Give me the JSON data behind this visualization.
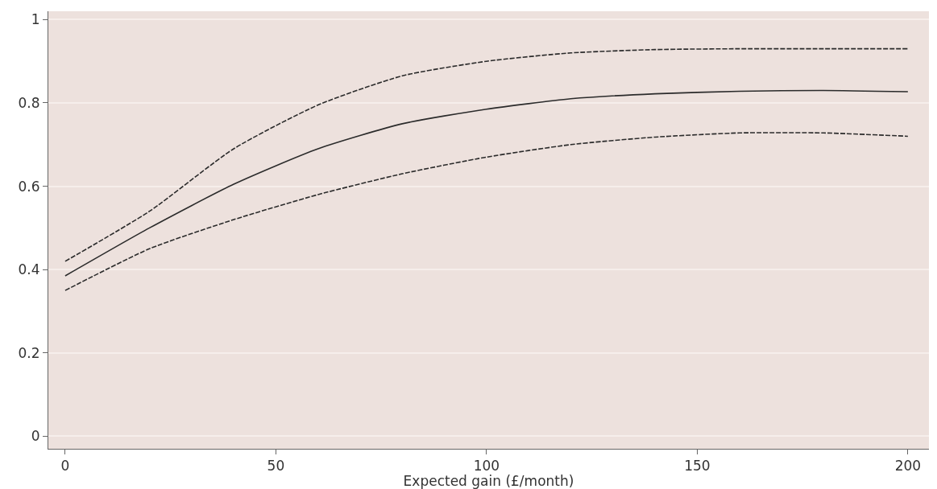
{
  "chart_data": {
    "type": "line",
    "xlabel": "Expected gain (£/month)",
    "x": [
      0,
      20,
      40,
      60,
      80,
      100,
      120,
      140,
      160,
      180,
      200
    ],
    "series": [
      {
        "color": "#2b2b2b",
        "line_style": "solid",
        "values": [
          0.385,
          0.5,
          0.605,
          0.69,
          0.75,
          0.785,
          0.81,
          0.822,
          0.828,
          0.83,
          0.827
        ]
      },
      {
        "color": "#2b2b2b",
        "line_style": "dashed",
        "values": [
          0.42,
          0.54,
          0.69,
          0.795,
          0.865,
          0.9,
          0.92,
          0.928,
          0.93,
          0.93,
          0.93
        ]
      },
      {
        "color": "#2b2b2b",
        "line_style": "dashed",
        "values": [
          0.35,
          0.45,
          0.52,
          0.58,
          0.63,
          0.67,
          0.7,
          0.718,
          0.728,
          0.728,
          0.72
        ]
      }
    ],
    "xlim": [
      -4,
      205
    ],
    "xticks": [
      0,
      50,
      100,
      150,
      200
    ],
    "ylim": [
      -0.03,
      1.02
    ],
    "yticks": [
      0,
      0.2,
      0.4,
      0.6,
      0.8,
      1
    ],
    "grid": "y",
    "marker": "none"
  }
}
